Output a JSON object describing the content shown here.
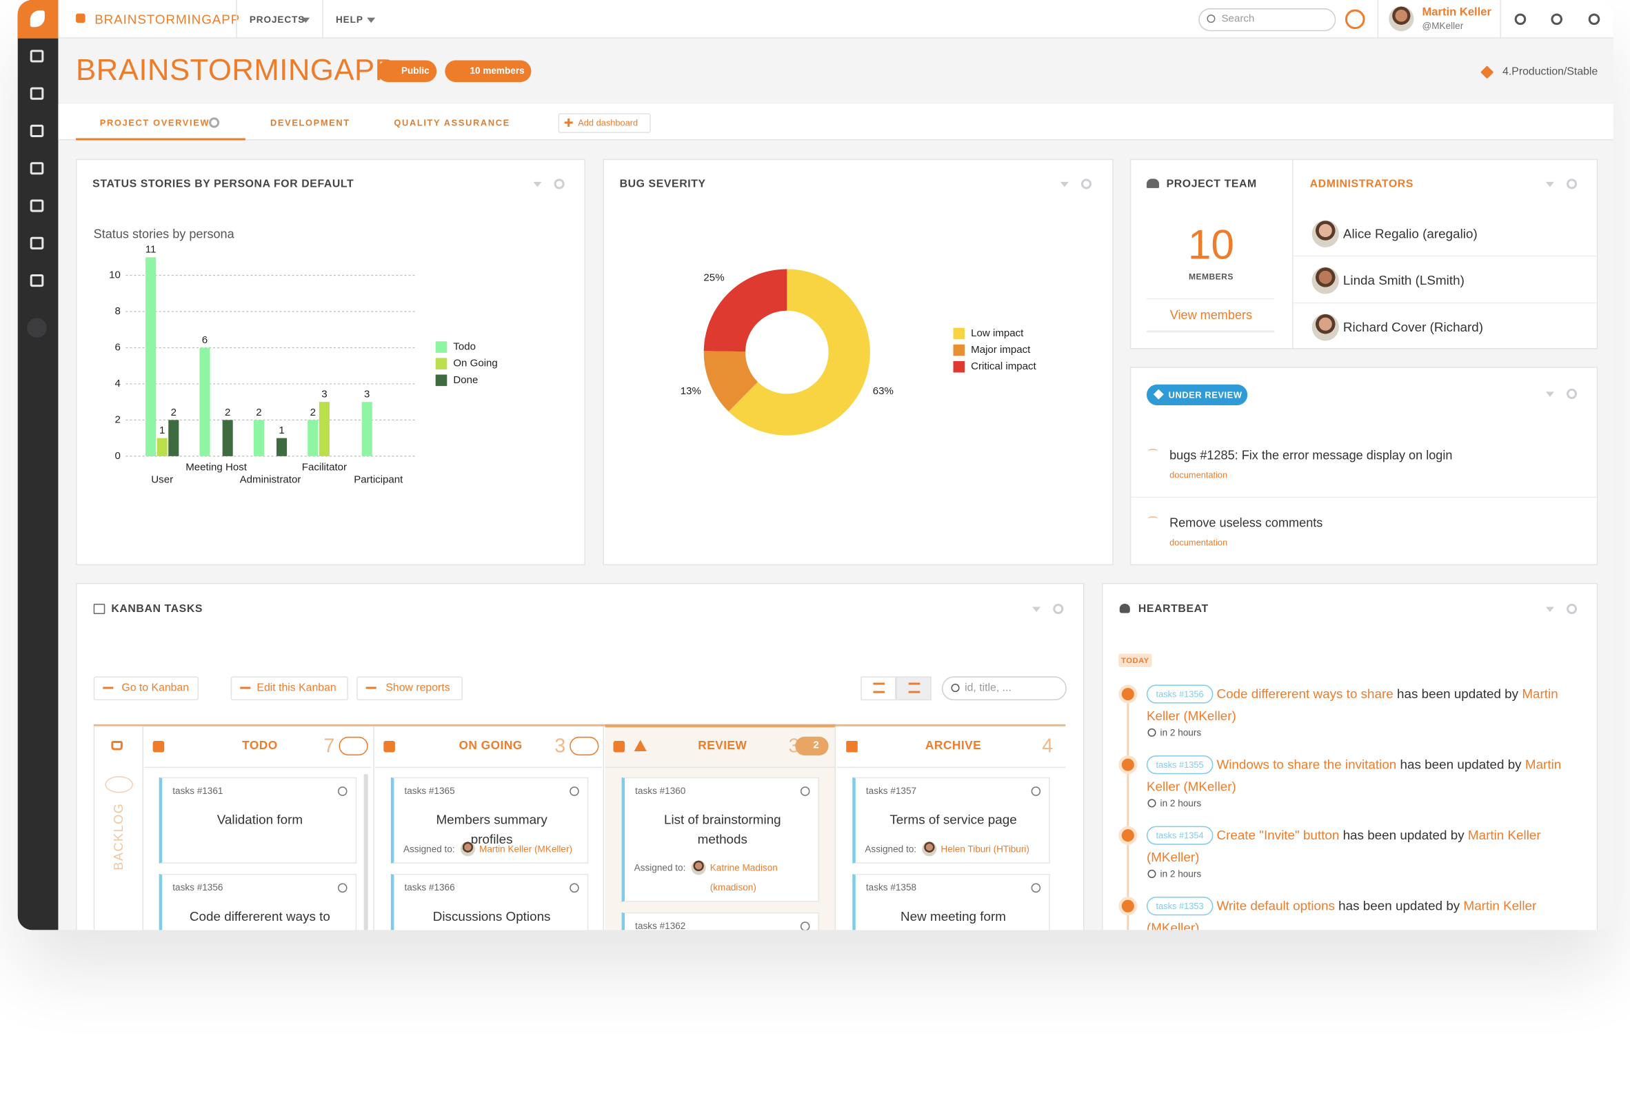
{
  "topbar": {
    "app_name": "BRAINSTORMINGAPP",
    "menus": [
      "PROJECTS",
      "HELP"
    ],
    "search_placeholder": "Search",
    "user_name": "Martin Keller",
    "user_handle": "@MKeller"
  },
  "header": {
    "title": "BRAINSTORMINGAPP",
    "visibility": "Public",
    "members_badge": "10 members",
    "status": "4.Production/Stable"
  },
  "tabs": [
    "PROJECT OVERVIEW",
    "DEVELOPMENT",
    "QUALITY ASSURANCE"
  ],
  "add_dashboard": "Add dashboard",
  "status_widget": {
    "title": "STATUS STORIES BY PERSONA FOR DEFAULT"
  },
  "bug_widget": {
    "title": "BUG SEVERITY"
  },
  "chart_data": [
    {
      "type": "bar",
      "title": "Status stories by persona",
      "categories": [
        "User",
        "Meeting Host",
        "Administrator",
        "Facilitator",
        "Participant"
      ],
      "series": [
        {
          "name": "Todo",
          "color": "#8ef5a3",
          "values": [
            11,
            6,
            2,
            2,
            3
          ]
        },
        {
          "name": "On Going",
          "color": "#b9e04b",
          "values": [
            1,
            0,
            0,
            3,
            0
          ]
        },
        {
          "name": "Done",
          "color": "#3e6b40",
          "values": [
            2,
            2,
            1,
            0,
            0
          ]
        }
      ],
      "ylim": [
        0,
        11
      ],
      "yticks": [
        0,
        2,
        4,
        6,
        8,
        10
      ],
      "grid": true,
      "legend": "right"
    },
    {
      "type": "pie",
      "donut": true,
      "categories": [
        "Low impact",
        "Major impact",
        "Critical impact"
      ],
      "values": [
        63,
        13,
        25
      ],
      "value_labels": [
        "63%",
        "13%",
        "25%"
      ],
      "colors": [
        "#f8d443",
        "#e88f33",
        "#df3a2f"
      ],
      "legend": "right"
    }
  ],
  "team": {
    "title": "PROJECT TEAM",
    "count": 10,
    "count_label": "MEMBERS",
    "link": "View members",
    "admins_title": "ADMINISTRATORS",
    "admins": [
      "Alice Regalio (aregalio)",
      "Linda Smith (LSmith)",
      "Richard Cover (Richard)"
    ]
  },
  "review": {
    "badge": "UNDER REVIEW",
    "items": [
      {
        "title": "bugs #1285: Fix the error message display on login",
        "tag": "documentation"
      },
      {
        "title": "Remove useless comments",
        "tag": "documentation"
      }
    ]
  },
  "kanban": {
    "title": "KANBAN TASKS",
    "buttons": [
      "Go to Kanban",
      "Edit this Kanban",
      "Show reports"
    ],
    "search_placeholder": "id, title, ...",
    "backlog": "BACKLOG",
    "assigned_label": "Assigned to:",
    "columns": [
      {
        "name": "TODO",
        "count": 7,
        "cards": [
          {
            "id": "tasks #1361",
            "title": "Validation form"
          },
          {
            "id": "tasks #1356",
            "title": "Code differerent ways to"
          }
        ]
      },
      {
        "name": "ON GOING",
        "count": 3,
        "cards": [
          {
            "id": "tasks #1365",
            "title": "Members summary profiles",
            "assignee": "Martin Keller (MKeller)"
          },
          {
            "id": "tasks #1366",
            "title": "Discussions Options"
          }
        ]
      },
      {
        "name": "REVIEW",
        "count": 3,
        "limit": 2,
        "cards": [
          {
            "id": "tasks #1360",
            "title": "List of brainstorming methods",
            "assignee": "Katrine Madison (kmadison)"
          },
          {
            "id": "tasks #1362"
          }
        ]
      },
      {
        "name": "ARCHIVE",
        "count": 4,
        "cards": [
          {
            "id": "tasks #1357",
            "title": "Terms of service page",
            "assignee": "Helen Tiburi (HTiburi)"
          },
          {
            "id": "tasks #1358",
            "title": "New meeting form"
          }
        ]
      }
    ]
  },
  "heartbeat": {
    "title": "HEARTBEAT",
    "day": "TODAY",
    "action": "has been updated by",
    "events": [
      {
        "task": "tasks #1356",
        "title": "Code differerent ways to share",
        "user": "Martin Keller (MKeller)",
        "time": "in 2 hours"
      },
      {
        "task": "tasks #1355",
        "title": "Windows to share the invitation",
        "user": "Martin Keller (MKeller)",
        "time": "in 2 hours"
      },
      {
        "task": "tasks #1354",
        "title": "Create \"Invite\" button",
        "user": "Martin Keller (MKeller)",
        "time": "in 2 hours"
      },
      {
        "task": "tasks #1353",
        "title": "Write default options",
        "user": "Martin Keller (MKeller)"
      }
    ]
  }
}
